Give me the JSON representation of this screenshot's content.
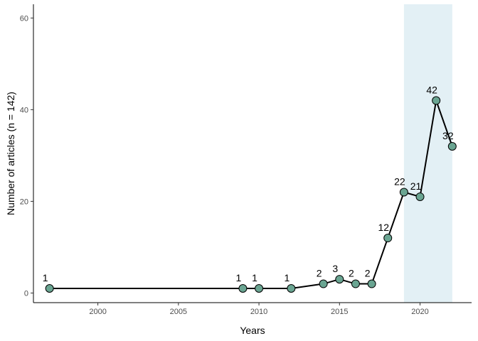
{
  "chart_data": {
    "type": "line",
    "title": "",
    "xlabel": "Years",
    "ylabel": "Number of articles (n = 142)",
    "xlim": [
      1996.0,
      2023.2
    ],
    "ylim": [
      -2.1,
      63
    ],
    "x_ticks": [
      2000,
      2005,
      2010,
      2015,
      2020
    ],
    "y_ticks": [
      0,
      20,
      40,
      60
    ],
    "grid": false,
    "legend": "none",
    "highlight_band": {
      "x_start": 2019,
      "x_end": 2022,
      "color": "#e3f0f5"
    },
    "series": [
      {
        "x": [
          1997,
          2009,
          2010,
          2012,
          2014,
          2015,
          2016,
          2017,
          2018,
          2019,
          2020,
          2021,
          2022
        ],
        "values": [
          1,
          1,
          1,
          1,
          2,
          3,
          2,
          2,
          12,
          22,
          21,
          42,
          32
        ],
        "labels": [
          "1",
          "1",
          "1",
          "1",
          "2",
          "3",
          "2",
          "2",
          "12",
          "22",
          "21",
          "42",
          "32"
        ],
        "color": "#000000",
        "marker_color": "#6aa592"
      }
    ]
  }
}
